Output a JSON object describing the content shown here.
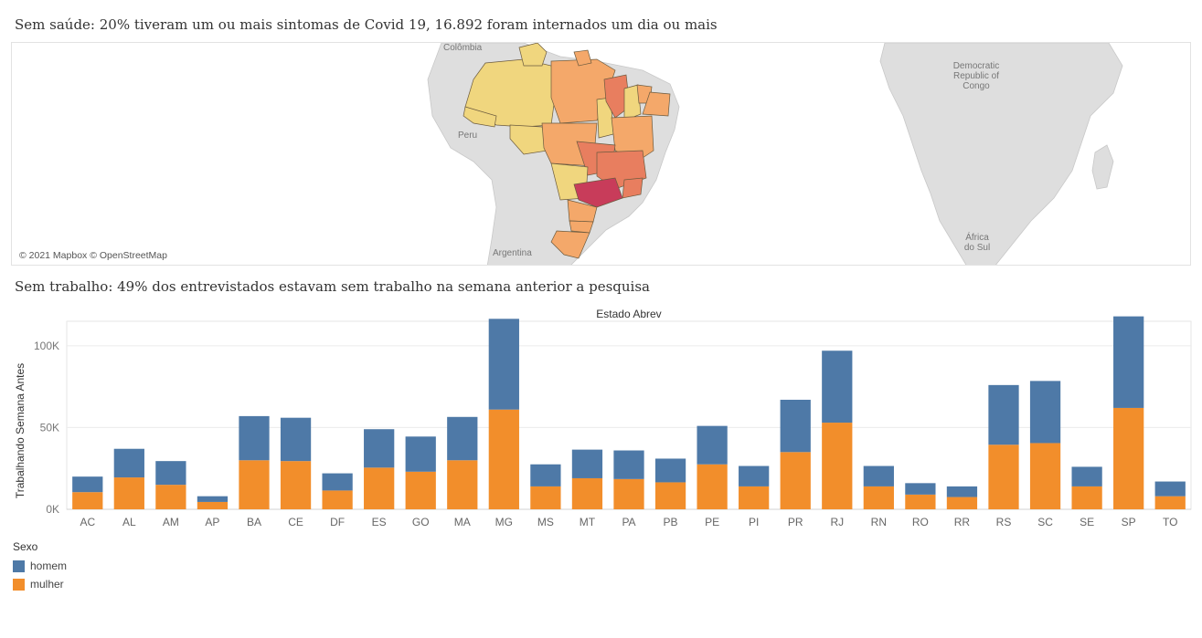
{
  "header": {
    "map_title": "Sem saúde: 20% tiveram um ou mais sintomas de Covid 19,  16.892 foram internados um dia ou mais",
    "bar_title": "Sem trabalho: 49% dos entrevistados estavam sem trabalho na semana anterior a pesquisa"
  },
  "map": {
    "attribution": "© 2021 Mapbox © OpenStreetMap",
    "labels": {
      "colombia": "Colômbia",
      "peru": "Peru",
      "argentina": "Argentina",
      "congo": "Democratic Republic of Congo",
      "south_africa": "África do Sul"
    },
    "colors": {
      "low": "#f0d67e",
      "mid": "#f4a86a",
      "high": "#e87e5f",
      "top": "#c83c5a",
      "land": "#dedede"
    }
  },
  "legend": {
    "title": "Sexo",
    "items": [
      {
        "label": "homem",
        "color": "#4e79a7"
      },
      {
        "label": "mulher",
        "color": "#f28e2b"
      }
    ]
  },
  "chart_data": {
    "type": "bar",
    "stacked": true,
    "title": "Estado Abrev",
    "xlabel": "Estado Abrev",
    "ylabel": "Trabalhando Semana Antes",
    "ylim": [
      0,
      120000
    ],
    "yticks": [
      0,
      50000,
      100000
    ],
    "ytick_labels": [
      "0K",
      "50K",
      "100K"
    ],
    "categories": [
      "AC",
      "AL",
      "AM",
      "AP",
      "BA",
      "CE",
      "DF",
      "ES",
      "GO",
      "MA",
      "MG",
      "MS",
      "MT",
      "PA",
      "PB",
      "PE",
      "PI",
      "PR",
      "RJ",
      "RN",
      "RO",
      "RR",
      "RS",
      "SC",
      "SE",
      "SP",
      "TO"
    ],
    "series": [
      {
        "name": "mulher",
        "color": "#f28e2b",
        "values": [
          10500,
          19500,
          15000,
          4500,
          30000,
          29500,
          11500,
          25500,
          23000,
          30000,
          61000,
          14000,
          19000,
          18500,
          16500,
          27500,
          14000,
          35000,
          53000,
          14000,
          9000,
          7500,
          39500,
          40500,
          14000,
          62000,
          8000
        ]
      },
      {
        "name": "homem",
        "color": "#4e79a7",
        "values": [
          9500,
          17500,
          14500,
          3500,
          27000,
          26500,
          10500,
          23500,
          21500,
          26500,
          55500,
          13500,
          17500,
          17500,
          14500,
          23500,
          12500,
          32000,
          44000,
          12500,
          7000,
          6500,
          36500,
          38000,
          12000,
          56000,
          9000
        ]
      }
    ],
    "grid": true,
    "legend_position": "bottom-left"
  }
}
